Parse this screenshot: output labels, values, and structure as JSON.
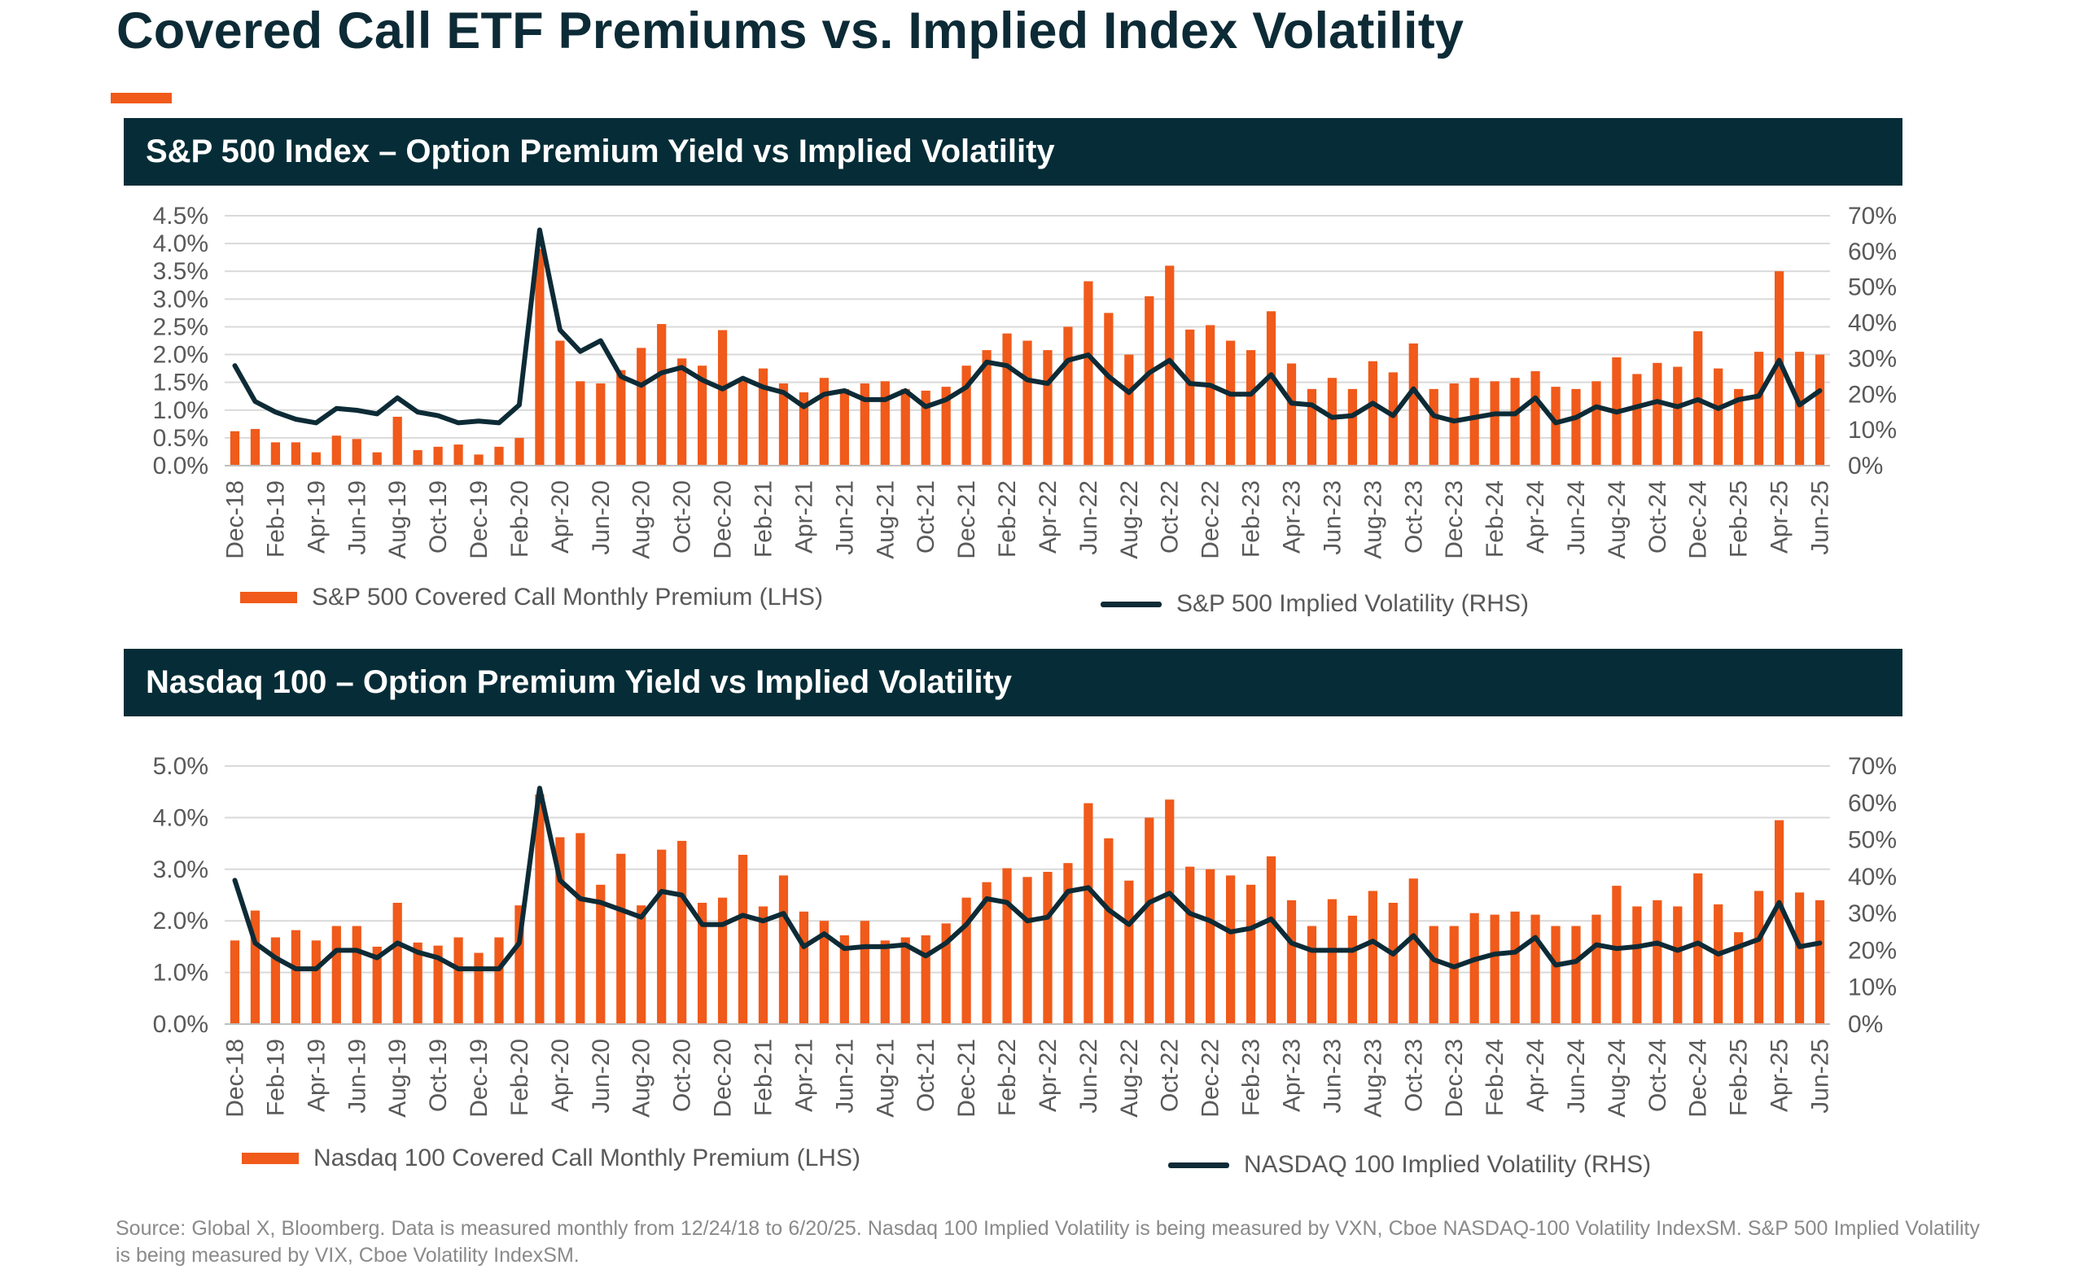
{
  "page": {
    "title": "Covered Call ETF Premiums vs. Implied Index Volatility",
    "source": "Source: Global X, Bloomberg. Data is measured monthly from 12/24/18 to 6/20/25. Nasdaq 100 Implied Volatility is being measured by VXN, Cboe NASDAQ-100 Volatility IndexSM. S&P 500 Implied Volatility is being measured by VIX, Cboe Volatility IndexSM."
  },
  "colors": {
    "bar": "#f05a1a",
    "line": "#0d2b36",
    "header_bg": "#062d37",
    "accent": "#f05a1a",
    "grid": "#d9d9d9",
    "axis_text": "#595959"
  },
  "chart_data": [
    {
      "type": "bar",
      "title": "S&P 500 Index – Option Premium Yield vs Implied Volatility",
      "x_labels": [
        "Dec-18",
        "Feb-19",
        "Apr-19",
        "Jun-19",
        "Aug-19",
        "Oct-19",
        "Dec-19",
        "Feb-20",
        "Apr-20",
        "Jun-20",
        "Aug-20",
        "Oct-20",
        "Dec-20",
        "Feb-21",
        "Apr-21",
        "Jun-21",
        "Aug-21",
        "Oct-21",
        "Dec-21",
        "Feb-22",
        "Apr-22",
        "Jun-22",
        "Aug-22",
        "Oct-22",
        "Dec-22",
        "Feb-23",
        "Apr-23",
        "Jun-23",
        "Aug-23",
        "Oct-23",
        "Dec-23",
        "Feb-24",
        "Apr-24",
        "Jun-24",
        "Aug-24",
        "Oct-24",
        "Dec-24",
        "Feb-25",
        "Apr-25",
        "Jun-25"
      ],
      "y_ticks_left": [
        "0.0%",
        "0.5%",
        "1.0%",
        "1.5%",
        "2.0%",
        "2.5%",
        "3.0%",
        "3.5%",
        "4.0%",
        "4.5%"
      ],
      "y_ticks_right": [
        "0%",
        "10%",
        "20%",
        "30%",
        "40%",
        "50%",
        "60%",
        "70%"
      ],
      "ylim_left": [
        0,
        4.5
      ],
      "ylim_right": [
        0,
        70
      ],
      "grid": true,
      "legend_position": "bottom",
      "series": [
        {
          "name": "S&P 500 Covered Call Monthly Premium (LHS)",
          "type": "bar",
          "axis": "left",
          "values": [
            0.62,
            0.66,
            0.42,
            0.42,
            0.24,
            0.54,
            0.48,
            0.24,
            0.88,
            0.28,
            0.34,
            0.38,
            0.2,
            0.34,
            0.5,
            3.9,
            2.25,
            1.52,
            1.48,
            1.72,
            2.12,
            2.55,
            1.93,
            1.8,
            2.44,
            1.52,
            1.75,
            1.48,
            1.32,
            1.58,
            1.38,
            1.48,
            1.52,
            1.38,
            1.35,
            1.42,
            1.8,
            2.08,
            2.38,
            2.25,
            2.08,
            2.5,
            3.32,
            2.75,
            2.0,
            3.05,
            3.6,
            2.45,
            2.53,
            2.25,
            2.08,
            2.78,
            1.84,
            1.38,
            1.58,
            1.38,
            1.88,
            1.68,
            2.2,
            1.38,
            1.48,
            1.58,
            1.52,
            1.58,
            1.7,
            1.42,
            1.38,
            1.52,
            1.95,
            1.65,
            1.85,
            1.78,
            2.42,
            1.75,
            1.38,
            2.05,
            3.5,
            2.05,
            2.0
          ]
        },
        {
          "name": "S&P 500 Implied Volatility (RHS)",
          "type": "line",
          "axis": "right",
          "values": [
            28,
            18,
            15,
            13,
            12,
            16,
            15.5,
            14.5,
            19,
            15,
            14,
            12,
            12.5,
            12,
            17,
            66,
            38,
            32,
            35,
            25,
            22.5,
            26,
            27.5,
            24,
            21.5,
            24.5,
            22,
            20.5,
            16.5,
            20,
            21,
            18.5,
            18.5,
            21,
            16.5,
            18.5,
            22,
            29,
            28,
            24,
            23,
            29.5,
            31,
            25,
            20.5,
            26,
            29.5,
            23,
            22.5,
            20,
            20,
            25.5,
            17.5,
            17,
            13.5,
            14,
            17.5,
            14,
            21.5,
            14,
            12.5,
            13.5,
            14.5,
            14.5,
            19,
            12,
            13.5,
            16.5,
            15,
            16.5,
            18,
            16.5,
            18.5,
            16,
            18.5,
            19.5,
            29.5,
            17,
            21
          ]
        }
      ]
    },
    {
      "type": "bar",
      "title": "Nasdaq 100 – Option Premium Yield vs Implied Volatility",
      "x_labels": [
        "Dec-18",
        "Feb-19",
        "Apr-19",
        "Jun-19",
        "Aug-19",
        "Oct-19",
        "Dec-19",
        "Feb-20",
        "Apr-20",
        "Jun-20",
        "Aug-20",
        "Oct-20",
        "Dec-20",
        "Feb-21",
        "Apr-21",
        "Jun-21",
        "Aug-21",
        "Oct-21",
        "Dec-21",
        "Feb-22",
        "Apr-22",
        "Jun-22",
        "Aug-22",
        "Oct-22",
        "Dec-22",
        "Feb-23",
        "Apr-23",
        "Jun-23",
        "Aug-23",
        "Oct-23",
        "Dec-23",
        "Feb-24",
        "Apr-24",
        "Jun-24",
        "Aug-24",
        "Oct-24",
        "Dec-24",
        "Feb-25",
        "Apr-25",
        "Jun-25"
      ],
      "y_ticks_left": [
        "0.0%",
        "1.0%",
        "2.0%",
        "3.0%",
        "4.0%",
        "5.0%"
      ],
      "y_ticks_right": [
        "0%",
        "10%",
        "20%",
        "30%",
        "40%",
        "50%",
        "60%",
        "70%"
      ],
      "ylim_left": [
        0,
        5
      ],
      "ylim_right": [
        0,
        70
      ],
      "grid": true,
      "legend_position": "bottom",
      "series": [
        {
          "name": "Nasdaq 100 Covered Call Monthly Premium (LHS)",
          "type": "bar",
          "axis": "left",
          "values": [
            1.62,
            2.2,
            1.68,
            1.82,
            1.62,
            1.9,
            1.9,
            1.5,
            2.35,
            1.58,
            1.52,
            1.68,
            1.38,
            1.68,
            2.3,
            4.45,
            3.62,
            3.7,
            2.7,
            3.3,
            2.3,
            3.38,
            3.55,
            2.35,
            2.45,
            3.28,
            2.28,
            2.88,
            2.18,
            2.0,
            1.72,
            2.0,
            1.62,
            1.68,
            1.72,
            1.95,
            2.45,
            2.75,
            3.02,
            2.85,
            2.95,
            3.12,
            4.28,
            3.6,
            2.78,
            4.0,
            4.35,
            3.05,
            3.0,
            2.88,
            2.7,
            3.25,
            2.4,
            1.9,
            2.42,
            2.1,
            2.58,
            2.35,
            2.82,
            1.9,
            1.9,
            2.15,
            2.12,
            2.18,
            2.12,
            1.9,
            1.9,
            2.12,
            2.68,
            2.28,
            2.4,
            2.28,
            2.92,
            2.32,
            1.78,
            2.58,
            3.95,
            2.55,
            2.4
          ]
        },
        {
          "name": "NASDAQ 100 Implied Volatility (RHS)",
          "type": "line",
          "axis": "right",
          "values": [
            39,
            22,
            18,
            15,
            15,
            20,
            20,
            18,
            22,
            19.5,
            18,
            15,
            15,
            15,
            22,
            64,
            39,
            34,
            33,
            31,
            29,
            36,
            35,
            27,
            27,
            29.5,
            28,
            30,
            21,
            24.5,
            20.5,
            21,
            21,
            21.5,
            18.5,
            22,
            27,
            34,
            33,
            28,
            29,
            36,
            37,
            31,
            27,
            33,
            35.5,
            30,
            28,
            25,
            26,
            28.5,
            22,
            20,
            20,
            20,
            22.5,
            19,
            24,
            17.5,
            15.5,
            17.5,
            19,
            19.5,
            23.5,
            16,
            17,
            21.5,
            20.5,
            21,
            22,
            20,
            22,
            19,
            21,
            23,
            33,
            21,
            22
          ]
        }
      ]
    }
  ]
}
